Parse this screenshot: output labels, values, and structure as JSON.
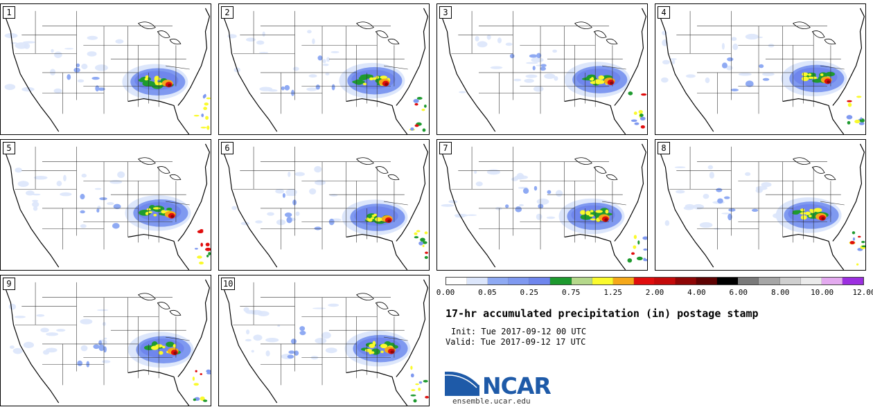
{
  "members": [
    {
      "label": "1"
    },
    {
      "label": "2"
    },
    {
      "label": "3"
    },
    {
      "label": "4"
    },
    {
      "label": "5"
    },
    {
      "label": "6"
    },
    {
      "label": "7"
    },
    {
      "label": "8"
    },
    {
      "label": "9"
    },
    {
      "label": "10"
    }
  ],
  "legend": {
    "colors": [
      "#ffffff",
      "#dce6fb",
      "#8faaf3",
      "#7f99f0",
      "#6f86ed",
      "#1e9a2f",
      "#b5d88b",
      "#fafa2d",
      "#f5a81a",
      "#e00d0d",
      "#c40a0a",
      "#8e0606",
      "#5e0303",
      "#000000",
      "#7a7a7a",
      "#a6a6a6",
      "#cfcfcf",
      "#ebebeb",
      "#e3aaef",
      "#9c2fe0"
    ],
    "ticks": [
      "0.00",
      "0.05",
      "0.25",
      "0.75",
      "1.25",
      "2.00",
      "4.00",
      "6.00",
      "8.00",
      "10.00",
      "12.00"
    ]
  },
  "title": "17-hr accumulated precipitation (in) postage stamp",
  "init": "Init: Tue 2017-09-12 00 UTC",
  "valid": "Valid: Tue 2017-09-12 17 UTC",
  "brand": {
    "name": "NCAR",
    "url": "ensemble.ucar.edu",
    "color": "#1e5aa8"
  }
}
